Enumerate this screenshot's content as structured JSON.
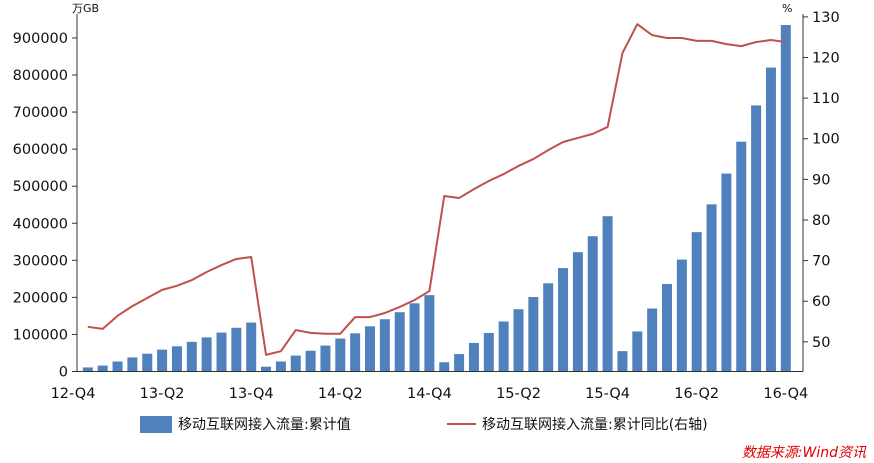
{
  "chart_data": {
    "type": "bar",
    "categories": [
      "12-Q4",
      "",
      "",
      "",
      "",
      "",
      "13-Q2",
      "",
      "",
      "",
      "",
      "",
      "13-Q4",
      "",
      "",
      "",
      "",
      "",
      "14-Q2",
      "",
      "",
      "",
      "",
      "",
      "14-Q4",
      "",
      "",
      "",
      "",
      "",
      "15-Q2",
      "",
      "",
      "",
      "",
      "",
      "15-Q4",
      "",
      "",
      "",
      "",
      "",
      "16-Q2",
      "",
      "",
      "",
      "",
      "",
      "16-Q4"
    ],
    "series": [
      {
        "name": "移动互联网接入流量:累计值",
        "type": "bar",
        "axis": "left",
        "color": "#4f81bd",
        "values": [
          null,
          11000,
          16000,
          27000,
          38000,
          48000,
          59000,
          68000,
          80000,
          92000,
          105000,
          118000,
          132000,
          13000,
          27000,
          43000,
          56000,
          70000,
          89000,
          103000,
          122000,
          141000,
          160000,
          184000,
          206000,
          25000,
          47000,
          77000,
          104000,
          135000,
          168000,
          201000,
          238000,
          279000,
          322000,
          365000,
          419000,
          55000,
          108000,
          170000,
          236000,
          302000,
          376000,
          451000,
          534000,
          620000,
          718000,
          820000,
          935000
        ]
      },
      {
        "name": "移动互联网接入流量:累计同比(右轴)",
        "type": "line",
        "axis": "right",
        "color": "#c0504d",
        "values": [
          null,
          53.7,
          53.2,
          56.4,
          58.8,
          60.8,
          62.8,
          63.8,
          65.2,
          67.2,
          68.9,
          70.4,
          70.9,
          46.8,
          47.7,
          52.9,
          52.2,
          52.0,
          52.0,
          56.1,
          56.1,
          57.1,
          58.6,
          60.3,
          62.5,
          85.9,
          85.4,
          87.6,
          89.6,
          91.3,
          93.3,
          95.0,
          97.2,
          99.2,
          100.2,
          101.2,
          102.9,
          121.1,
          128.2,
          125.5,
          124.8,
          124.8,
          124.1,
          124.1,
          123.3,
          122.8,
          123.8,
          124.3,
          123.8
        ]
      }
    ],
    "y_left": {
      "unit": "万GB",
      "ylim": [
        0,
        970000
      ],
      "ticks": [
        0,
        100000,
        200000,
        300000,
        400000,
        500000,
        600000,
        700000,
        800000,
        900000
      ]
    },
    "y_right": {
      "unit": "%",
      "ylim": [
        42.7,
        131.2
      ],
      "ticks": [
        50,
        60,
        70,
        80,
        90,
        100,
        110,
        120,
        130
      ]
    },
    "grid": false,
    "legend": "bottom",
    "source": "数据来源:Wind资讯",
    "source_color": "#e00000"
  }
}
